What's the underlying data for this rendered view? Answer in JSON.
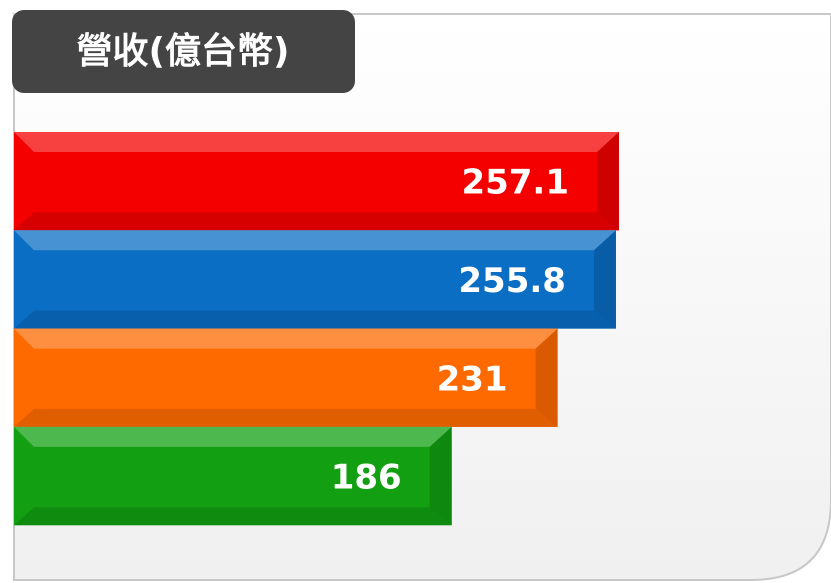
{
  "chart_data": {
    "type": "bar",
    "orientation": "horizontal",
    "title": "營收(億台幣)",
    "categories": [
      null,
      null,
      null,
      null
    ],
    "values": [
      257.1,
      255.8,
      231,
      186
    ],
    "colors": [
      "#f40000",
      "#0a6ec4",
      "#ff6a00",
      "#12a012"
    ]
  }
}
